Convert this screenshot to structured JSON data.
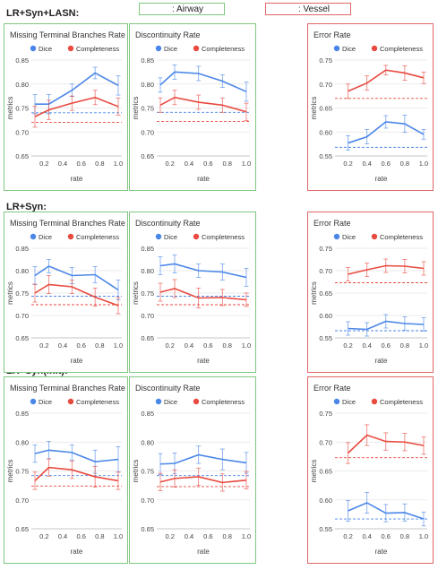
{
  "legend": {
    "airway": ": Airway",
    "vessel": ": Vessel",
    "airway_color": "#7ec87e",
    "vessel_color": "#e06666"
  },
  "colors": {
    "dice": "#4a86e8",
    "completeness": "#e84a3f"
  },
  "sections": [
    {
      "title": "LR+Syn+LASN:"
    },
    {
      "title": "LR+Syn:"
    },
    {
      "title": "LR+Syn(init):"
    }
  ],
  "chart_data": [
    {
      "type": "line",
      "section": 0,
      "title": "Missing Terminal Branches Rate",
      "xlabel": "rate",
      "ylabel": "metrics",
      "x": [
        0.1,
        0.25,
        0.5,
        0.75,
        1.0
      ],
      "xticks": [
        0.2,
        0.4,
        0.6,
        0.8,
        1.0
      ],
      "ylim": [
        0.65,
        0.85
      ],
      "yticks": [
        0.65,
        0.7,
        0.75,
        0.8,
        0.85
      ],
      "series": [
        {
          "name": "Dice",
          "values": [
            0.758,
            0.758,
            0.787,
            0.823,
            0.797
          ],
          "err": [
            0.02,
            0.02,
            0.013,
            0.012,
            0.02
          ],
          "baseline": 0.74
        },
        {
          "name": "Completeness",
          "values": [
            0.732,
            0.746,
            0.76,
            0.772,
            0.753
          ],
          "err": [
            0.022,
            0.02,
            0.015,
            0.015,
            0.018
          ],
          "baseline": 0.72
        }
      ]
    },
    {
      "type": "line",
      "section": 0,
      "title": "Discontinuity Rate",
      "xlabel": "rate",
      "ylabel": "metrics",
      "x": [
        0.1,
        0.25,
        0.5,
        0.75,
        1.0
      ],
      "xticks": [
        0.2,
        0.4,
        0.6,
        0.8,
        1.0
      ],
      "ylim": [
        0.65,
        0.85
      ],
      "yticks": [
        0.65,
        0.7,
        0.75,
        0.8,
        0.85
      ],
      "series": [
        {
          "name": "Dice",
          "values": [
            0.798,
            0.825,
            0.822,
            0.806,
            0.784
          ],
          "err": [
            0.015,
            0.015,
            0.015,
            0.013,
            0.02
          ],
          "baseline": 0.741
        },
        {
          "name": "Completeness",
          "values": [
            0.756,
            0.772,
            0.762,
            0.756,
            0.742
          ],
          "err": [
            0.015,
            0.015,
            0.015,
            0.015,
            0.018
          ],
          "baseline": 0.722
        }
      ]
    },
    {
      "type": "line",
      "section": 0,
      "title": "Error Rate",
      "xlabel": "rate",
      "ylabel": "metrics",
      "x": [
        0.2,
        0.4,
        0.6,
        0.8,
        1.0
      ],
      "xticks": [
        0.2,
        0.4,
        0.6,
        0.8,
        1.0
      ],
      "ylim": [
        0.55,
        0.75
      ],
      "yticks": [
        0.55,
        0.6,
        0.65,
        0.7,
        0.75
      ],
      "series": [
        {
          "name": "Dice",
          "values": [
            0.577,
            0.59,
            0.621,
            0.617,
            0.595
          ],
          "err": [
            0.015,
            0.015,
            0.013,
            0.018,
            0.01
          ],
          "baseline": 0.568
        },
        {
          "name": "Completeness",
          "values": [
            0.685,
            0.702,
            0.729,
            0.723,
            0.713
          ],
          "err": [
            0.015,
            0.015,
            0.01,
            0.015,
            0.012
          ],
          "baseline": 0.67
        }
      ]
    },
    {
      "type": "line",
      "section": 1,
      "title": "Missing Terminal Branches Rate",
      "xlabel": "rate",
      "ylabel": "metrics",
      "x": [
        0.1,
        0.25,
        0.5,
        0.75,
        1.0
      ],
      "xticks": [
        0.2,
        0.4,
        0.6,
        0.8,
        1.0
      ],
      "ylim": [
        0.65,
        0.85
      ],
      "yticks": [
        0.65,
        0.7,
        0.75,
        0.8,
        0.85
      ],
      "series": [
        {
          "name": "Dice",
          "values": [
            0.789,
            0.81,
            0.789,
            0.791,
            0.757
          ],
          "err": [
            0.02,
            0.015,
            0.018,
            0.018,
            0.022
          ],
          "baseline": 0.743
        },
        {
          "name": "Completeness",
          "values": [
            0.75,
            0.769,
            0.764,
            0.741,
            0.722
          ],
          "err": [
            0.02,
            0.02,
            0.015,
            0.02,
            0.018
          ],
          "baseline": 0.724
        }
      ]
    },
    {
      "type": "line",
      "section": 1,
      "title": "Discontinuity Rate",
      "xlabel": "rate",
      "ylabel": "metrics",
      "x": [
        0.1,
        0.25,
        0.5,
        0.75,
        1.0
      ],
      "xticks": [
        0.2,
        0.4,
        0.6,
        0.8,
        1.0
      ],
      "ylim": [
        0.65,
        0.85
      ],
      "yticks": [
        0.65,
        0.7,
        0.75,
        0.8,
        0.85
      ],
      "series": [
        {
          "name": "Dice",
          "values": [
            0.811,
            0.815,
            0.8,
            0.797,
            0.785
          ],
          "err": [
            0.02,
            0.02,
            0.015,
            0.018,
            0.02
          ],
          "baseline": 0.743
        },
        {
          "name": "Completeness",
          "values": [
            0.752,
            0.76,
            0.739,
            0.74,
            0.735
          ],
          "err": [
            0.02,
            0.02,
            0.022,
            0.018,
            0.015
          ],
          "baseline": 0.724
        }
      ]
    },
    {
      "type": "line",
      "section": 1,
      "title": "Error Rate",
      "xlabel": "rate",
      "ylabel": "metrics",
      "x": [
        0.2,
        0.4,
        0.6,
        0.8,
        1.0
      ],
      "xticks": [
        0.2,
        0.4,
        0.6,
        0.8,
        1.0
      ],
      "ylim": [
        0.55,
        0.75
      ],
      "yticks": [
        0.55,
        0.6,
        0.65,
        0.7,
        0.75
      ],
      "series": [
        {
          "name": "Dice",
          "values": [
            0.571,
            0.569,
            0.587,
            0.582,
            0.58
          ],
          "err": [
            0.015,
            0.015,
            0.015,
            0.015,
            0.015
          ],
          "baseline": 0.566
        },
        {
          "name": "Completeness",
          "values": [
            0.692,
            0.702,
            0.711,
            0.71,
            0.705
          ],
          "err": [
            0.015,
            0.015,
            0.015,
            0.015,
            0.015
          ],
          "baseline": 0.673
        }
      ]
    },
    {
      "type": "line",
      "section": 2,
      "title": "Missing Terminal Branches Rate",
      "xlabel": "rate",
      "ylabel": "metrics",
      "x": [
        0.1,
        0.25,
        0.5,
        0.75,
        1.0
      ],
      "xticks": [
        0.2,
        0.4,
        0.6,
        0.8,
        1.0
      ],
      "ylim": [
        0.65,
        0.85
      ],
      "yticks": [
        0.65,
        0.7,
        0.75,
        0.8,
        0.85
      ],
      "series": [
        {
          "name": "Dice",
          "values": [
            0.78,
            0.786,
            0.782,
            0.766,
            0.77
          ],
          "err": [
            0.015,
            0.015,
            0.013,
            0.02,
            0.022
          ],
          "baseline": 0.742
        },
        {
          "name": "Completeness",
          "values": [
            0.733,
            0.756,
            0.752,
            0.74,
            0.733
          ],
          "err": [
            0.015,
            0.015,
            0.015,
            0.018,
            0.015
          ],
          "baseline": 0.724
        }
      ]
    },
    {
      "type": "line",
      "section": 2,
      "title": "Discontinuity Rate",
      "xlabel": "rate",
      "ylabel": "metrics",
      "x": [
        0.1,
        0.25,
        0.5,
        0.75,
        1.0
      ],
      "xticks": [
        0.2,
        0.4,
        0.6,
        0.8,
        1.0
      ],
      "ylim": [
        0.65,
        0.85
      ],
      "yticks": [
        0.65,
        0.7,
        0.75,
        0.8,
        0.85
      ],
      "series": [
        {
          "name": "Dice",
          "values": [
            0.762,
            0.763,
            0.778,
            0.77,
            0.764
          ],
          "err": [
            0.018,
            0.018,
            0.015,
            0.018,
            0.018
          ],
          "baseline": 0.742
        },
        {
          "name": "Completeness",
          "values": [
            0.731,
            0.737,
            0.74,
            0.73,
            0.734
          ],
          "err": [
            0.015,
            0.015,
            0.015,
            0.015,
            0.015
          ],
          "baseline": 0.723
        }
      ]
    },
    {
      "type": "line",
      "section": 2,
      "title": "Error Rate",
      "xlabel": "rate",
      "ylabel": "metrics",
      "x": [
        0.2,
        0.4,
        0.6,
        0.8,
        1.0
      ],
      "xticks": [
        0.2,
        0.4,
        0.6,
        0.8,
        1.0
      ],
      "ylim": [
        0.55,
        0.75
      ],
      "yticks": [
        0.55,
        0.6,
        0.65,
        0.7,
        0.75
      ],
      "series": [
        {
          "name": "Dice",
          "values": [
            0.581,
            0.595,
            0.577,
            0.578,
            0.567
          ],
          "err": [
            0.018,
            0.018,
            0.015,
            0.015,
            0.012
          ],
          "baseline": 0.567
        },
        {
          "name": "Completeness",
          "values": [
            0.681,
            0.712,
            0.701,
            0.7,
            0.694
          ],
          "err": [
            0.018,
            0.018,
            0.015,
            0.015,
            0.015
          ],
          "baseline": 0.673
        }
      ]
    }
  ]
}
